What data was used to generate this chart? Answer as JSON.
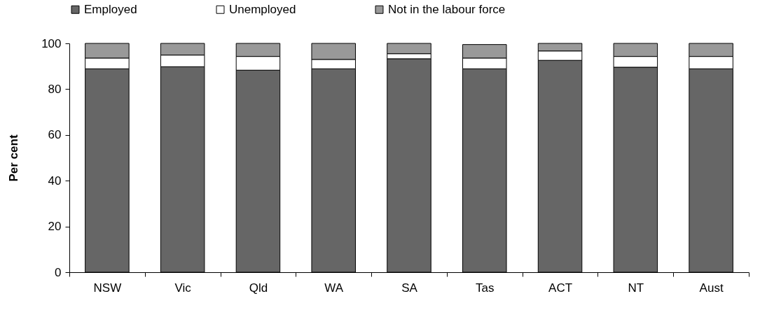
{
  "chart_data": {
    "type": "bar",
    "stacked": true,
    "ylabel": "Per cent",
    "categories": [
      "NSW",
      "Vic",
      "Qld",
      "WA",
      "SA",
      "Tas",
      "ACT",
      "NT",
      "Aust"
    ],
    "series": [
      {
        "name": "Employed",
        "color": "#666666",
        "values": [
          88.9,
          89.8,
          88.3,
          88.9,
          93.3,
          88.9,
          92.6,
          89.6,
          88.9
        ]
      },
      {
        "name": "Unemployed",
        "color": "#ffffff",
        "values": [
          4.7,
          5.1,
          6.0,
          4.1,
          2.2,
          4.7,
          4.1,
          4.7,
          5.4
        ]
      },
      {
        "name": "Not in the labour force",
        "color": "#999999",
        "values": [
          6.4,
          5.1,
          5.7,
          7.0,
          4.5,
          5.9,
          3.3,
          5.7,
          5.7
        ]
      }
    ],
    "ylim": [
      0,
      100
    ],
    "yticks": [
      0,
      20,
      40,
      60,
      80,
      100
    ],
    "grid": false,
    "legend": "top"
  }
}
